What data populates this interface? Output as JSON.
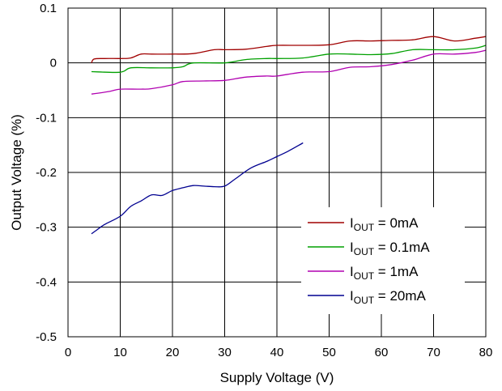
{
  "chart_data": {
    "type": "line",
    "xlabel": "Supply Voltage (V)",
    "ylabel": "Output Voltage (%)",
    "xlim": [
      0,
      80
    ],
    "ylim": [
      -0.5,
      0.1
    ],
    "x_ticks": [
      0,
      10,
      20,
      30,
      40,
      50,
      60,
      70,
      80
    ],
    "x_tick_labels": [
      "0",
      "10",
      "20",
      "30",
      "40",
      "50",
      "60",
      "70",
      "80"
    ],
    "y_ticks": [
      0.1,
      0,
      -0.1,
      -0.2,
      -0.3,
      -0.4,
      -0.5
    ],
    "y_tick_labels": [
      "0.1",
      "0",
      "-0.1",
      "-0.2",
      "-0.3",
      "-0.4",
      "-0.5"
    ],
    "grid": true,
    "legend_position": "bottom-right",
    "series": [
      {
        "name": "I",
        "name_sub": "OUT",
        "name_suffix": " = 0mA",
        "color": "#a00000",
        "x": [
          4.5,
          5,
          7,
          10,
          12,
          14,
          16,
          20,
          24,
          28,
          30,
          34,
          38,
          40,
          45,
          50,
          54,
          58,
          62,
          66,
          70,
          74,
          78,
          80
        ],
        "y": [
          0.0,
          0.007,
          0.008,
          0.008,
          0.009,
          0.016,
          0.016,
          0.016,
          0.017,
          0.024,
          0.024,
          0.025,
          0.03,
          0.032,
          0.032,
          0.033,
          0.04,
          0.04,
          0.041,
          0.042,
          0.048,
          0.04,
          0.045,
          0.048
        ]
      },
      {
        "name": "I",
        "name_sub": "OUT",
        "name_suffix": " = 0.1mA",
        "color": "#00a000",
        "x": [
          4.5,
          10,
          12,
          16,
          20,
          22,
          24,
          30,
          34,
          38,
          40,
          45,
          50,
          54,
          58,
          62,
          66,
          70,
          74,
          78,
          80
        ],
        "y": [
          -0.016,
          -0.017,
          -0.009,
          -0.009,
          -0.009,
          -0.007,
          0.0,
          0.0,
          0.006,
          0.008,
          0.008,
          0.009,
          0.016,
          0.016,
          0.015,
          0.017,
          0.024,
          0.024,
          0.024,
          0.027,
          0.032
        ]
      },
      {
        "name": "I",
        "name_sub": "OUT",
        "name_suffix": " = 1mA",
        "color": "#b000b0",
        "x": [
          4.5,
          8,
          10,
          14,
          16,
          20,
          22,
          26,
          30,
          34,
          38,
          40,
          45,
          50,
          54,
          58,
          62,
          66,
          70,
          74,
          78,
          80
        ],
        "y": [
          -0.057,
          -0.052,
          -0.048,
          -0.048,
          -0.047,
          -0.04,
          -0.034,
          -0.033,
          -0.032,
          -0.026,
          -0.024,
          -0.024,
          -0.017,
          -0.016,
          -0.008,
          -0.007,
          -0.003,
          0.005,
          0.016,
          0.016,
          0.019,
          0.023
        ]
      },
      {
        "name": "I",
        "name_sub": "OUT",
        "name_suffix": " = 20mA",
        "color": "#000090",
        "x": [
          4.5,
          5.5,
          7,
          10,
          12,
          14,
          16,
          18,
          20,
          22,
          24,
          26,
          28,
          30,
          32,
          35,
          38,
          40,
          42,
          45
        ],
        "y": [
          -0.312,
          -0.305,
          -0.295,
          -0.28,
          -0.262,
          -0.252,
          -0.241,
          -0.242,
          -0.233,
          -0.228,
          -0.224,
          -0.225,
          -0.226,
          -0.225,
          -0.212,
          -0.192,
          -0.18,
          -0.171,
          -0.162,
          -0.146
        ]
      }
    ]
  }
}
